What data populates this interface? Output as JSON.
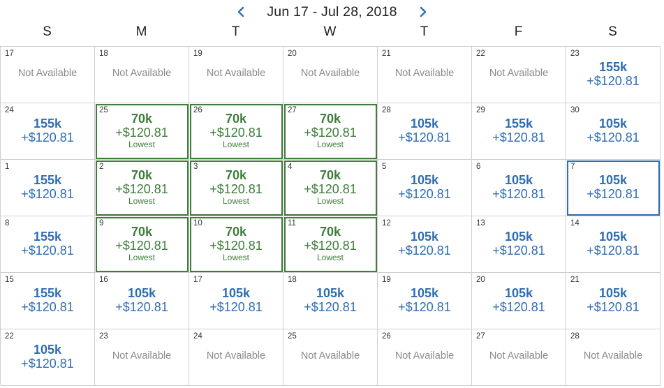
{
  "header": {
    "range_title": "Jun 17 - Jul 28, 2018",
    "prev_icon": "chevron-left-icon",
    "next_icon": "chevron-right-icon"
  },
  "weekdays": [
    "S",
    "M",
    "T",
    "W",
    "T",
    "F",
    "S"
  ],
  "labels": {
    "not_available": "Not Available",
    "lowest": "Lowest"
  },
  "colors": {
    "price": "#2e6db4",
    "lowest": "#3f7d3a",
    "selected_border": "#2e6db4",
    "unavailable_text": "#8a8a8a"
  },
  "selected_day": "7",
  "weeks": [
    [
      {
        "day": "17",
        "status": "na"
      },
      {
        "day": "18",
        "status": "na"
      },
      {
        "day": "19",
        "status": "na"
      },
      {
        "day": "20",
        "status": "na"
      },
      {
        "day": "21",
        "status": "na"
      },
      {
        "day": "22",
        "status": "na"
      },
      {
        "day": "23",
        "status": "price",
        "miles": "155k",
        "tax": "+$120.81"
      }
    ],
    [
      {
        "day": "24",
        "status": "price",
        "miles": "155k",
        "tax": "+$120.81"
      },
      {
        "day": "25",
        "status": "lowest",
        "miles": "70k",
        "tax": "+$120.81"
      },
      {
        "day": "26",
        "status": "lowest",
        "miles": "70k",
        "tax": "+$120.81"
      },
      {
        "day": "27",
        "status": "lowest",
        "miles": "70k",
        "tax": "+$120.81"
      },
      {
        "day": "28",
        "status": "price",
        "miles": "105k",
        "tax": "+$120.81"
      },
      {
        "day": "29",
        "status": "price",
        "miles": "155k",
        "tax": "+$120.81"
      },
      {
        "day": "30",
        "status": "price",
        "miles": "105k",
        "tax": "+$120.81"
      }
    ],
    [
      {
        "day": "1",
        "status": "price",
        "miles": "155k",
        "tax": "+$120.81"
      },
      {
        "day": "2",
        "status": "lowest",
        "miles": "70k",
        "tax": "+$120.81"
      },
      {
        "day": "3",
        "status": "lowest",
        "miles": "70k",
        "tax": "+$120.81"
      },
      {
        "day": "4",
        "status": "lowest",
        "miles": "70k",
        "tax": "+$120.81"
      },
      {
        "day": "5",
        "status": "price",
        "miles": "105k",
        "tax": "+$120.81"
      },
      {
        "day": "6",
        "status": "price",
        "miles": "105k",
        "tax": "+$120.81"
      },
      {
        "day": "7",
        "status": "price",
        "miles": "105k",
        "tax": "+$120.81",
        "selected": true
      }
    ],
    [
      {
        "day": "8",
        "status": "price",
        "miles": "155k",
        "tax": "+$120.81"
      },
      {
        "day": "9",
        "status": "lowest",
        "miles": "70k",
        "tax": "+$120.81"
      },
      {
        "day": "10",
        "status": "lowest",
        "miles": "70k",
        "tax": "+$120.81"
      },
      {
        "day": "11",
        "status": "lowest",
        "miles": "70k",
        "tax": "+$120.81"
      },
      {
        "day": "12",
        "status": "price",
        "miles": "105k",
        "tax": "+$120.81"
      },
      {
        "day": "13",
        "status": "price",
        "miles": "105k",
        "tax": "+$120.81"
      },
      {
        "day": "14",
        "status": "price",
        "miles": "105k",
        "tax": "+$120.81"
      }
    ],
    [
      {
        "day": "15",
        "status": "price",
        "miles": "155k",
        "tax": "+$120.81"
      },
      {
        "day": "16",
        "status": "price",
        "miles": "105k",
        "tax": "+$120.81"
      },
      {
        "day": "17",
        "status": "price",
        "miles": "105k",
        "tax": "+$120.81"
      },
      {
        "day": "18",
        "status": "price",
        "miles": "105k",
        "tax": "+$120.81"
      },
      {
        "day": "19",
        "status": "price",
        "miles": "105k",
        "tax": "+$120.81"
      },
      {
        "day": "20",
        "status": "price",
        "miles": "105k",
        "tax": "+$120.81"
      },
      {
        "day": "21",
        "status": "price",
        "miles": "105k",
        "tax": "+$120.81"
      }
    ],
    [
      {
        "day": "22",
        "status": "price",
        "miles": "105k",
        "tax": "+$120.81"
      },
      {
        "day": "23",
        "status": "na"
      },
      {
        "day": "24",
        "status": "na"
      },
      {
        "day": "25",
        "status": "na"
      },
      {
        "day": "26",
        "status": "na"
      },
      {
        "day": "27",
        "status": "na"
      },
      {
        "day": "28",
        "status": "na"
      }
    ]
  ]
}
